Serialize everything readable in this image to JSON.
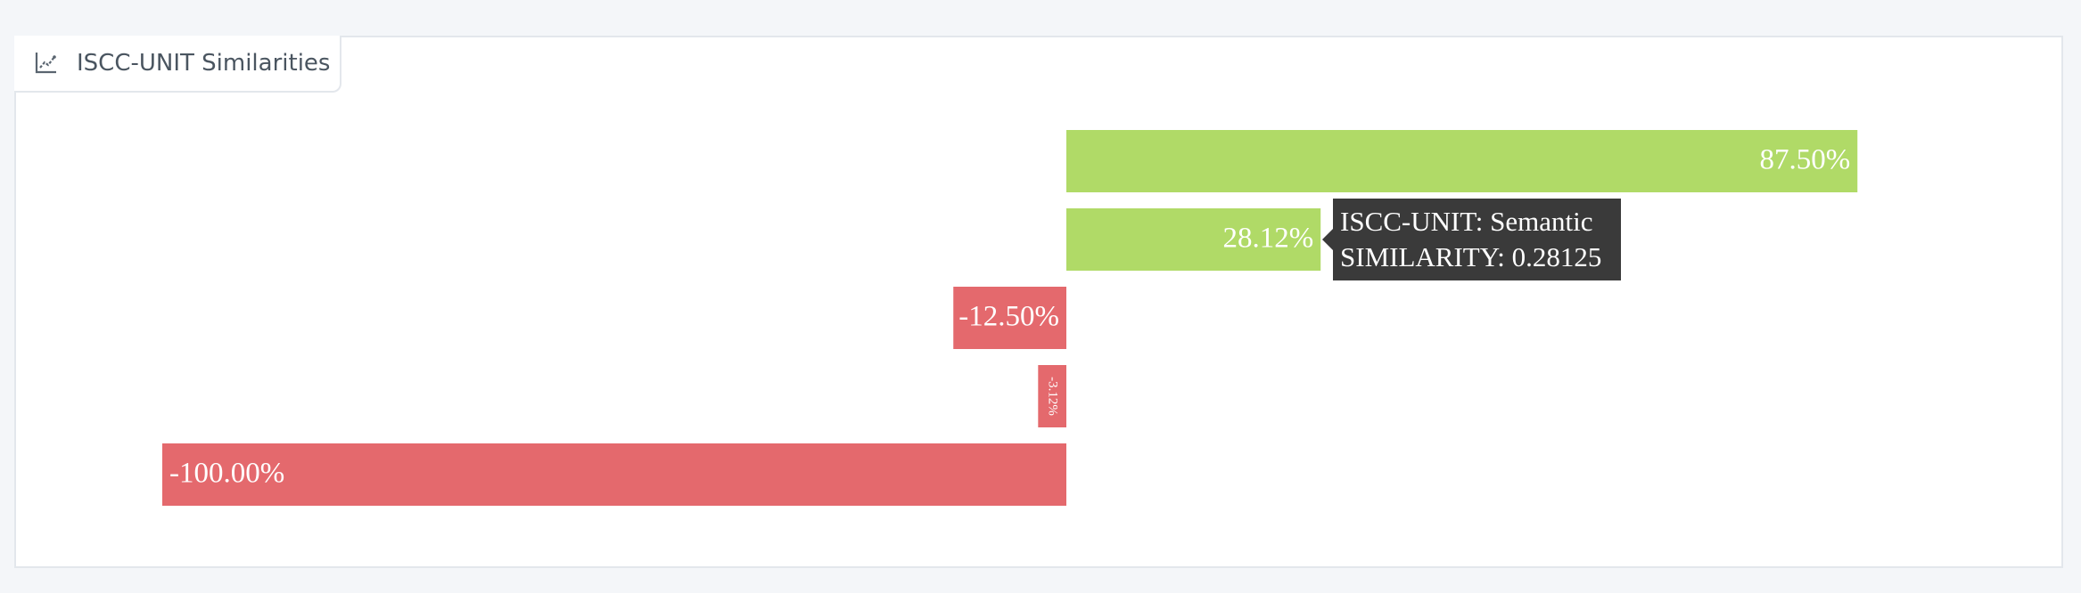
{
  "panel": {
    "title": "ISCC-UNIT Similarities",
    "icon": "line-chart-icon"
  },
  "tooltip": {
    "line1": "ISCC-UNIT: Semantic",
    "line2": "SIMILARITY: 0.28125"
  },
  "chart_data": {
    "type": "bar",
    "orientation": "horizontal",
    "title": "",
    "xlabel": "",
    "ylabel": "",
    "xlim": [
      -1.0,
      1.0
    ],
    "grid": false,
    "legend": "none",
    "bars": [
      {
        "value": 0.875,
        "label": "87.50%",
        "color": "#b0da67"
      },
      {
        "value": 0.28125,
        "label": "28.12%",
        "color": "#b0da67"
      },
      {
        "value": -0.125,
        "label": "-12.50%",
        "color": "#e4696d"
      },
      {
        "value": -0.03125,
        "label": "-3.12%",
        "color": "#e4696d"
      },
      {
        "value": -1.0,
        "label": "-100.00%",
        "color": "#e4696d"
      }
    ],
    "colors": {
      "positive": "#b0da67",
      "negative": "#e4696d"
    }
  }
}
